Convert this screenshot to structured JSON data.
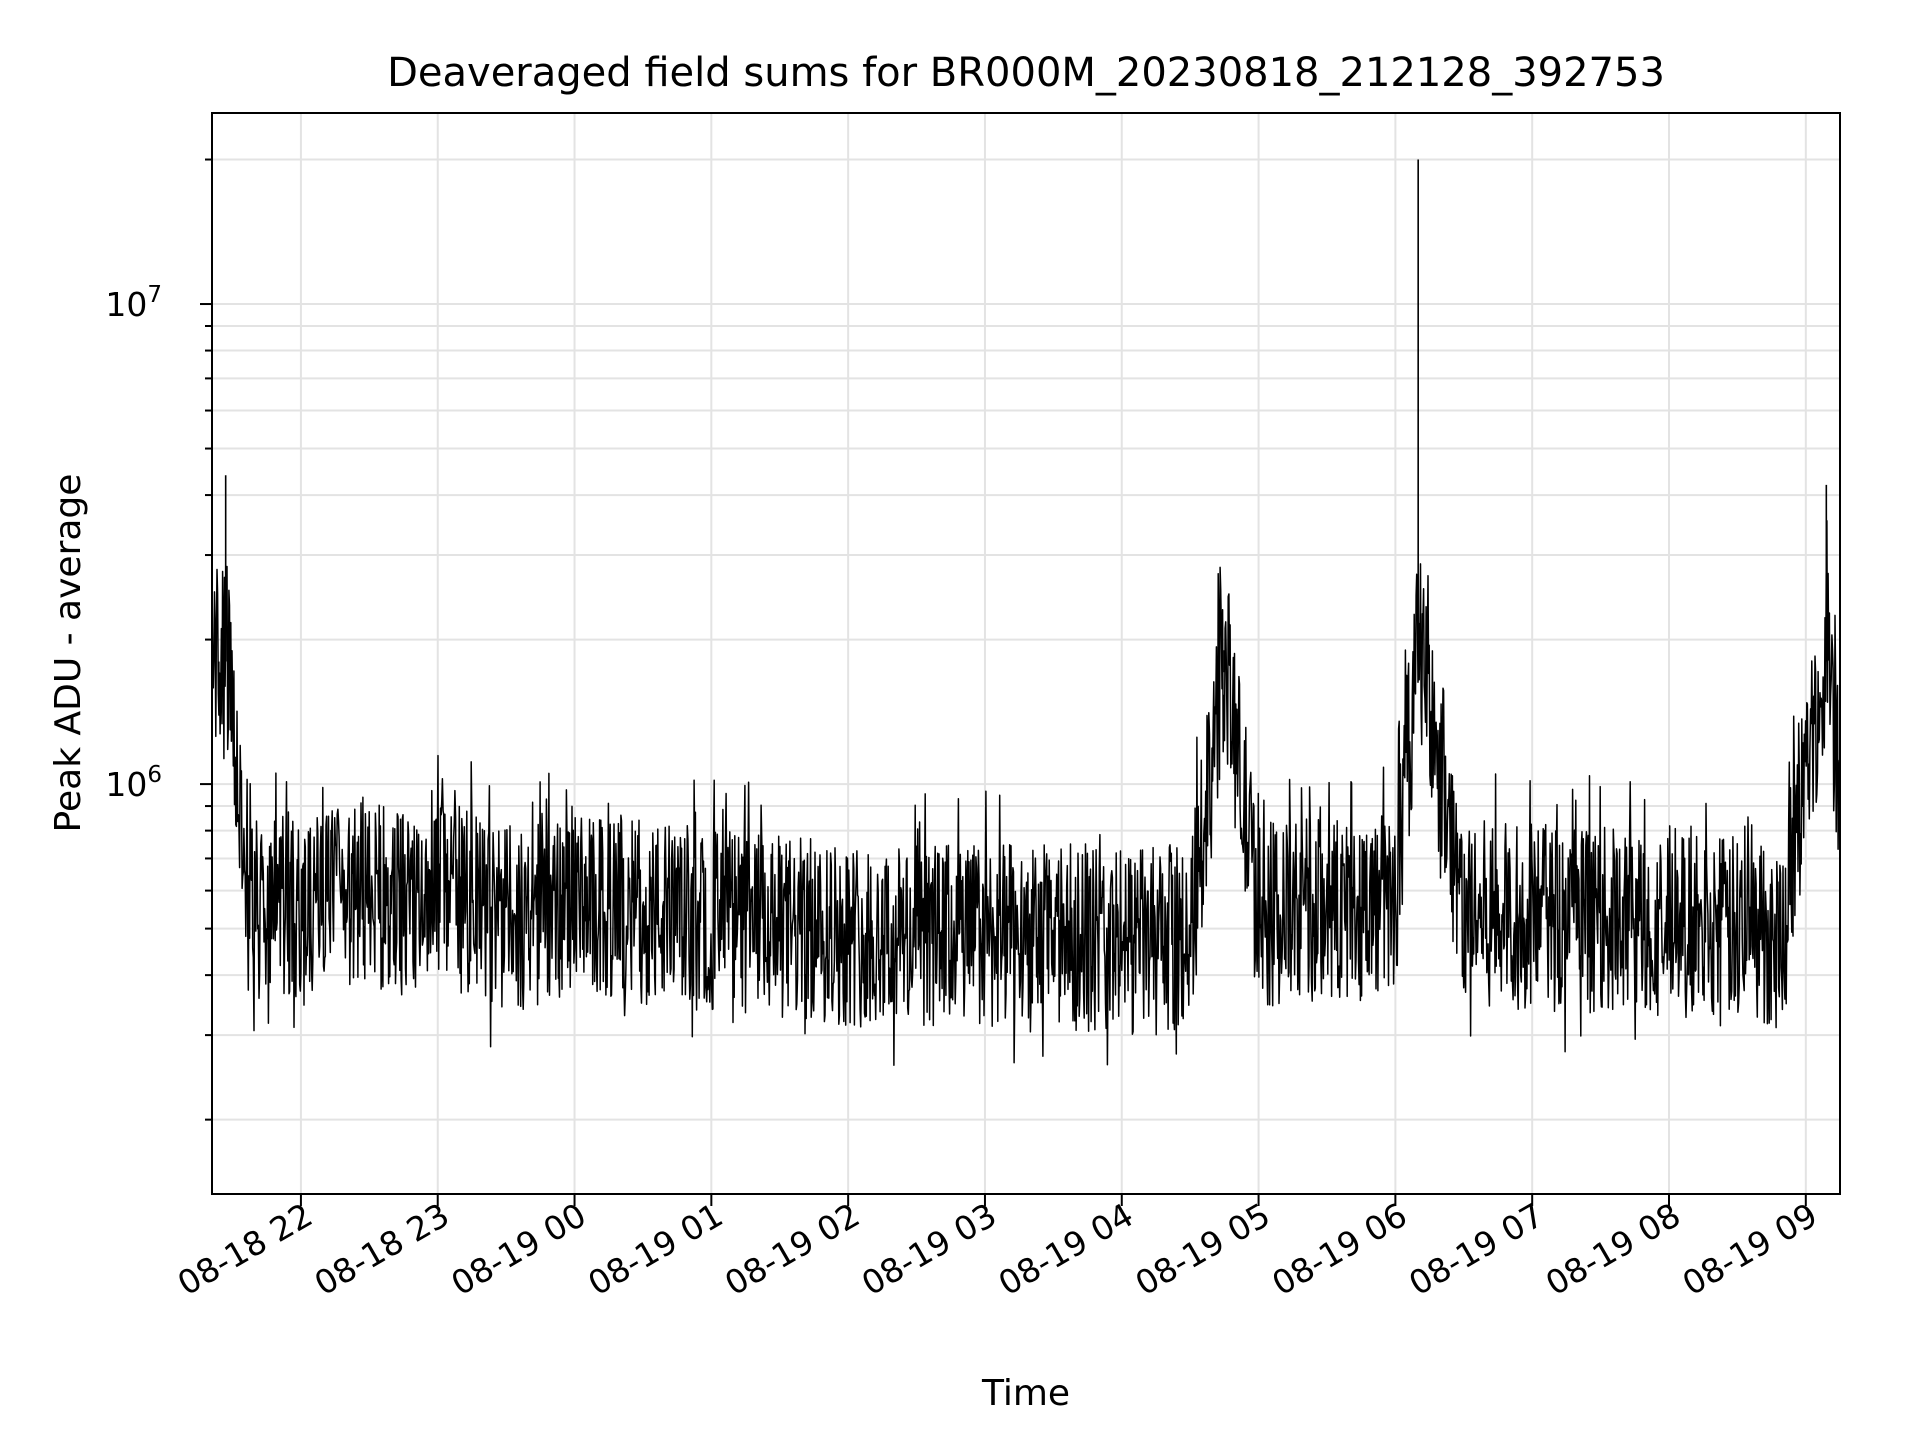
{
  "chart_data": {
    "type": "line",
    "title": "Deaveraged field sums for BR000M_20230818_212128_392753",
    "xlabel": "Time",
    "ylabel": "Peak ADU - average",
    "yscale": "log",
    "xlim": [
      "2023-08-18 21:21",
      "2023-08-19 09:15"
    ],
    "ylim": [
      140000,
      25000000
    ],
    "x_ticks": [
      "08-18 22",
      "08-18 23",
      "08-19 00",
      "08-19 01",
      "08-19 02",
      "08-19 03",
      "08-19 04",
      "08-19 05",
      "08-19 06",
      "08-19 07",
      "08-19 08",
      "08-19 09"
    ],
    "y_ticks": [
      {
        "value": 1000000,
        "base": "10",
        "exp": "6"
      },
      {
        "value": 10000000,
        "base": "10",
        "exp": "7"
      }
    ],
    "grid": true,
    "line_color": "#000000",
    "series": [
      {
        "x": [
          "2023-08-18 21:21",
          "2023-08-18 21:24",
          "2023-08-18 21:27",
          "2023-08-18 21:30",
          "2023-08-18 21:34",
          "2023-08-18 21:40",
          "2023-08-18 21:45",
          "2023-08-18 21:50",
          "2023-08-18 21:55",
          "2023-08-18 22:01",
          "2023-08-18 22:10",
          "2023-08-18 22:20",
          "2023-08-18 22:30",
          "2023-08-18 22:40",
          "2023-08-18 22:50",
          "2023-08-18 23:00",
          "2023-08-18 23:15",
          "2023-08-18 23:30",
          "2023-08-18 23:45",
          "2023-08-19 00:00",
          "2023-08-19 00:30",
          "2023-08-19 01:00",
          "2023-08-19 01:30",
          "2023-08-19 02:00",
          "2023-08-19 02:30",
          "2023-08-19 03:00",
          "2023-08-19 03:20",
          "2023-08-19 03:40",
          "2023-08-19 04:00",
          "2023-08-19 04:30",
          "2023-08-19 04:45",
          "2023-08-19 05:00",
          "2023-08-19 05:30",
          "2023-08-19 06:00",
          "2023-08-19 06:10",
          "2023-08-19 06:30",
          "2023-08-19 07:00",
          "2023-08-19 07:30",
          "2023-08-19 08:00",
          "2023-08-19 08:30",
          "2023-08-19 08:50",
          "2023-08-19 09:00",
          "2023-08-19 09:05",
          "2023-08-19 09:09",
          "2023-08-19 09:15"
        ],
        "y": [
          2900000,
          1800000,
          4400000,
          1300000,
          800000,
          560000,
          520000,
          550000,
          570000,
          540000,
          580000,
          560000,
          600000,
          570000,
          550000,
          600000,
          560000,
          520000,
          540000,
          550000,
          540000,
          520000,
          500000,
          490000,
          480000,
          490000,
          470000,
          480000,
          470000,
          480000,
          1900000,
          530000,
          550000,
          560000,
          20000000,
          540000,
          530000,
          520000,
          510000,
          500000,
          480000,
          1100000,
          1400000,
          4200000,
          900000
        ]
      }
    ]
  }
}
